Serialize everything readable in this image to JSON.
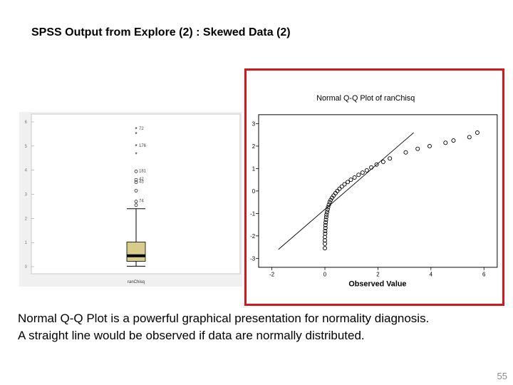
{
  "slide": {
    "title": "SPSS Output from Explore (2) : Skewed Data (2)",
    "caption_line1": "Normal Q-Q Plot is a powerful graphical presentation for normality diagnosis.",
    "caption_line2": "A straight line would be observed if data are normally distributed.",
    "page_number": "55"
  },
  "chart_data": [
    {
      "type": "box",
      "category_label": "ranChisq",
      "ylim": [
        0,
        6
      ],
      "y_ticks": [
        "0",
        "1",
        "2",
        "3",
        "4",
        "5",
        "6"
      ],
      "box": {
        "whisker_low": 0.02,
        "q1": 0.22,
        "median": 0.45,
        "q3": 1.02,
        "whisker_high": 2.4
      },
      "box_color": "#d8cc8c",
      "outliers": [
        {
          "value": 2.55,
          "marker": "circle",
          "label": ""
        },
        {
          "value": 2.7,
          "marker": "circle",
          "label": "74"
        },
        {
          "value": 3.15,
          "marker": "circle",
          "label": ""
        },
        {
          "value": 3.5,
          "marker": "circle",
          "label": "43"
        },
        {
          "value": 3.6,
          "marker": "circle",
          "label": "42"
        },
        {
          "value": 3.95,
          "marker": "circle",
          "label": "181"
        },
        {
          "value": 4.65,
          "marker": "star",
          "label": ""
        },
        {
          "value": 5.0,
          "marker": "star",
          "label": "176"
        },
        {
          "value": 5.5,
          "marker": "star",
          "label": ""
        },
        {
          "value": 5.7,
          "marker": "star",
          "label": "72"
        }
      ]
    },
    {
      "type": "scatter",
      "title": "Normal Q-Q Plot of ranChisq",
      "xlabel": "Observed Value",
      "ylabel": "",
      "xlim": [
        -2.5,
        6.5
      ],
      "ylim": [
        -3.4,
        3.4
      ],
      "x_ticks": [
        "-2",
        "0",
        "2",
        "4",
        "6"
      ],
      "y_ticks": [
        "3",
        "2",
        "1",
        "0",
        "-1",
        "-2",
        "-3"
      ],
      "reference_line": [
        [
          -1.75,
          -2.6
        ],
        [
          3.35,
          2.6
        ]
      ],
      "grid": false,
      "points": [
        [
          0.0,
          -2.55
        ],
        [
          0.0,
          -2.35
        ],
        [
          0.0,
          -2.2
        ],
        [
          0.0,
          -2.05
        ],
        [
          0.01,
          -1.9
        ],
        [
          0.01,
          -1.78
        ],
        [
          0.02,
          -1.65
        ],
        [
          0.02,
          -1.52
        ],
        [
          0.03,
          -1.4
        ],
        [
          0.04,
          -1.28
        ],
        [
          0.05,
          -1.16
        ],
        [
          0.06,
          -1.05
        ],
        [
          0.08,
          -0.94
        ],
        [
          0.1,
          -0.83
        ],
        [
          0.12,
          -0.72
        ],
        [
          0.15,
          -0.61
        ],
        [
          0.18,
          -0.5
        ],
        [
          0.22,
          -0.4
        ],
        [
          0.27,
          -0.3
        ],
        [
          0.33,
          -0.2
        ],
        [
          0.4,
          -0.1
        ],
        [
          0.47,
          0.0
        ],
        [
          0.55,
          0.1
        ],
        [
          0.64,
          0.2
        ],
        [
          0.74,
          0.3
        ],
        [
          0.86,
          0.4
        ],
        [
          0.98,
          0.5
        ],
        [
          1.12,
          0.6
        ],
        [
          1.27,
          0.72
        ],
        [
          1.42,
          0.82
        ],
        [
          1.58,
          0.92
        ],
        [
          1.75,
          1.05
        ],
        [
          1.95,
          1.18
        ],
        [
          2.2,
          1.3
        ],
        [
          2.45,
          1.45
        ],
        [
          3.05,
          1.72
        ],
        [
          3.5,
          1.88
        ],
        [
          3.95,
          2.0
        ],
        [
          4.55,
          2.15
        ],
        [
          4.85,
          2.25
        ],
        [
          5.45,
          2.4
        ],
        [
          5.75,
          2.6
        ]
      ]
    }
  ]
}
